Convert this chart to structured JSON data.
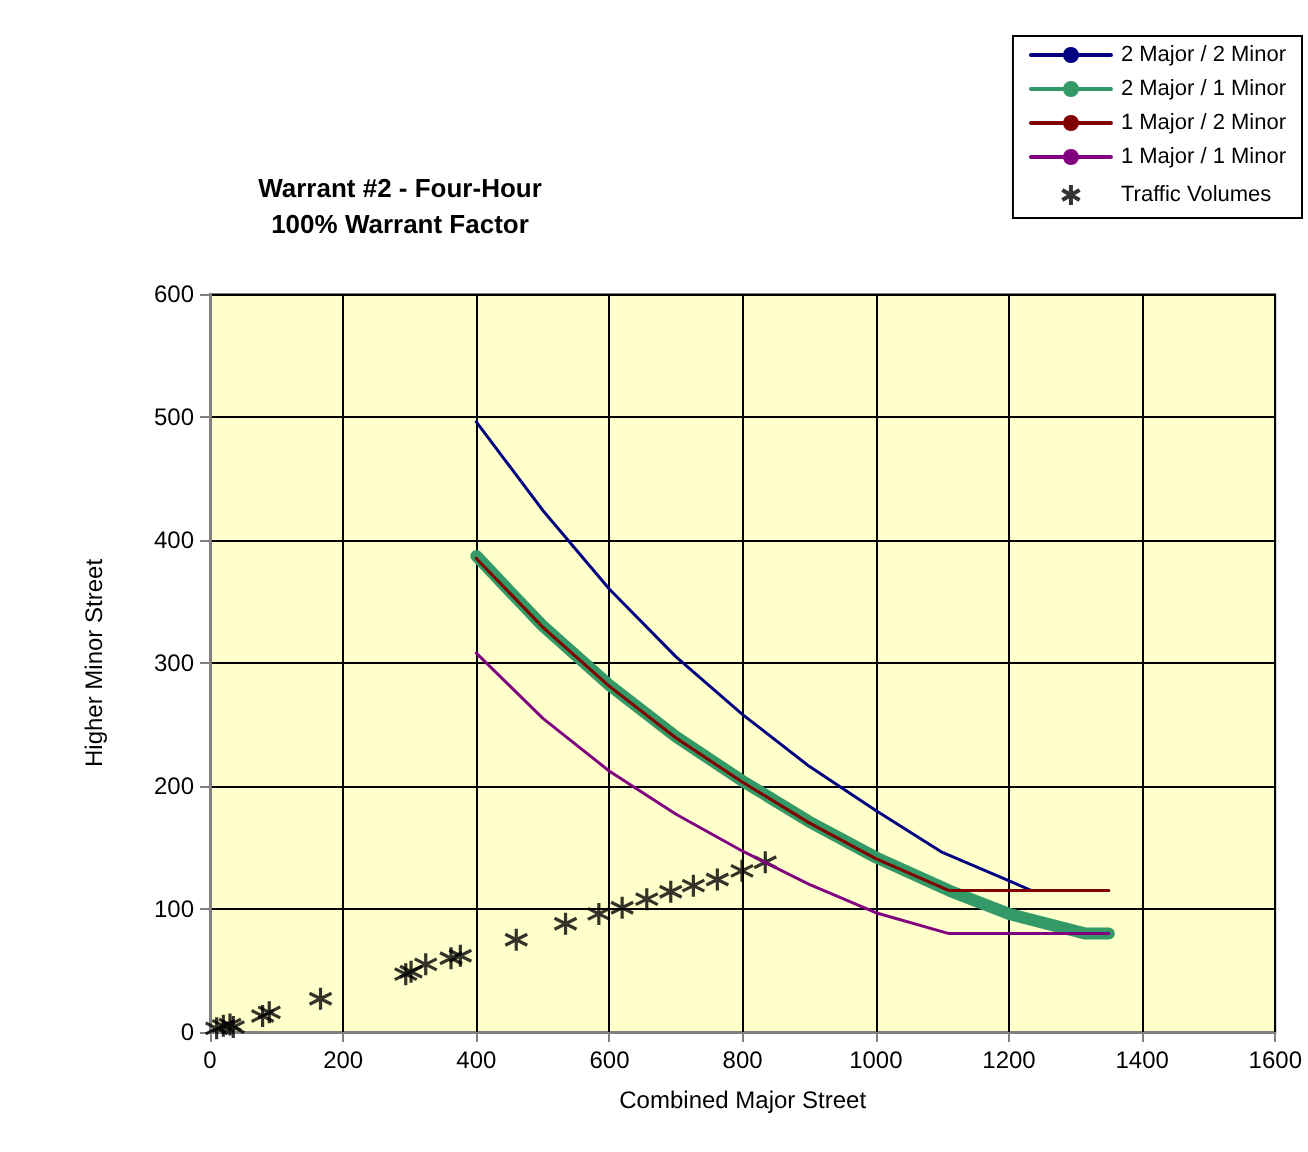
{
  "chart_data": {
    "type": "line",
    "title": "Warrant #2 - Four-Hour\n100% Warrant Factor",
    "xlabel": "Combined Major Street",
    "ylabel": "Higher Minor Street",
    "xlim": [
      0,
      1600
    ],
    "xticks": [
      0,
      200,
      400,
      600,
      800,
      1000,
      1200,
      1400,
      1600
    ],
    "ylim": [
      0,
      600
    ],
    "yticks": [
      0,
      100,
      200,
      300,
      400,
      500,
      600
    ],
    "grid": true,
    "legend": "top right",
    "marker": "none",
    "line_style": "solid",
    "series": [
      {
        "name": "2 Major / 2 Minor",
        "color": "#000080",
        "x": [
          400,
          500,
          600,
          700,
          800,
          900,
          1000,
          1100,
          1234
        ],
        "values": [
          496,
          424,
          360,
          305,
          258,
          216,
          180,
          146,
          115
        ]
      },
      {
        "name": "2 Major / 1 Minor",
        "color": "#339966",
        "x": [
          400,
          500,
          600,
          700,
          800,
          900,
          1000,
          1110,
          1200,
          1315,
          1350
        ],
        "values": [
          387,
          330,
          282,
          240,
          204,
          171,
          142,
          115,
          96,
          80,
          80
        ]
      },
      {
        "name": "1 Major / 2 Minor",
        "color": "#800000",
        "x": [
          400,
          500,
          600,
          700,
          800,
          900,
          1000,
          1110,
          1350
        ],
        "values": [
          385,
          329,
          281,
          239,
          203,
          170,
          141,
          115,
          115
        ]
      },
      {
        "name": "1 Major / 1 Minor",
        "color": "#800080",
        "x": [
          400,
          500,
          600,
          700,
          800,
          900,
          1000,
          1110,
          1350
        ],
        "values": [
          308,
          255,
          212,
          177,
          147,
          120,
          97,
          80,
          80
        ]
      },
      {
        "name": "Traffic Volumes",
        "type": "scatter",
        "marker": "cross",
        "color": "#000000",
        "x": [
          10,
          20,
          30,
          35,
          79,
          89,
          166,
          294,
          302,
          324,
          362,
          376,
          460,
          534,
          584,
          619,
          656,
          692,
          726,
          762,
          799,
          834
        ],
        "values": [
          3,
          5,
          6,
          4,
          13,
          16,
          27,
          47,
          49,
          55,
          60,
          62,
          75,
          88,
          96,
          101,
          108,
          114,
          119,
          124,
          131,
          138
        ]
      }
    ]
  }
}
